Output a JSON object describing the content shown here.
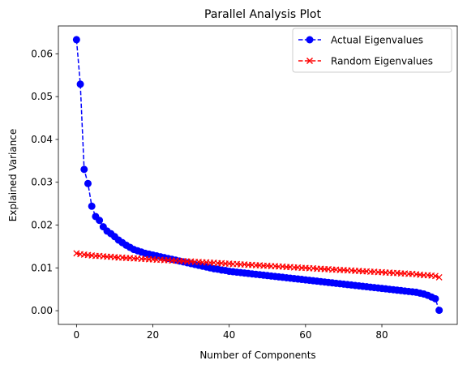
{
  "chart_data": {
    "type": "line",
    "title": "Parallel Analysis Plot",
    "xlabel": "Number of Components",
    "ylabel": "Explained Variance",
    "xlim": [
      -4.75,
      99.75
    ],
    "ylim": [
      -0.0032,
      0.0665
    ],
    "xticks": [
      0,
      20,
      40,
      60,
      80
    ],
    "yticks": [
      0.0,
      0.01,
      0.02,
      0.03,
      0.04,
      0.05,
      0.06
    ],
    "ytick_labels": [
      "0.00",
      "0.01",
      "0.02",
      "0.03",
      "0.04",
      "0.05",
      "0.06"
    ],
    "legend_position": "top-right",
    "series": [
      {
        "name": "Actual Eigenvalues",
        "color": "#0000ff",
        "marker": "circle",
        "linestyle": "dashed",
        "values": [
          0.0633,
          0.0529,
          0.033,
          0.0297,
          0.0244,
          0.022,
          0.0211,
          0.0196,
          0.0186,
          0.018,
          0.0173,
          0.0165,
          0.0159,
          0.0153,
          0.0148,
          0.0143,
          0.014,
          0.0137,
          0.0134,
          0.0132,
          0.013,
          0.0128,
          0.0126,
          0.0124,
          0.0122,
          0.012,
          0.0118,
          0.0116,
          0.0114,
          0.0112,
          0.011,
          0.0108,
          0.0106,
          0.0104,
          0.0102,
          0.01,
          0.0098,
          0.0097,
          0.0095,
          0.0094,
          0.0092,
          0.0091,
          0.009,
          0.0089,
          0.0088,
          0.0087,
          0.0086,
          0.0085,
          0.0084,
          0.0083,
          0.0082,
          0.0081,
          0.008,
          0.0079,
          0.0078,
          0.0077,
          0.0076,
          0.0075,
          0.0074,
          0.0073,
          0.0072,
          0.0071,
          0.007,
          0.0069,
          0.0068,
          0.0067,
          0.0066,
          0.0065,
          0.0064,
          0.0063,
          0.0062,
          0.0061,
          0.006,
          0.0059,
          0.0058,
          0.0057,
          0.0056,
          0.0055,
          0.0054,
          0.0053,
          0.0052,
          0.0051,
          0.005,
          0.0049,
          0.0048,
          0.0047,
          0.0046,
          0.0045,
          0.0044,
          0.0043,
          0.0041,
          0.0039,
          0.0036,
          0.0032,
          0.0028,
          0.0001
        ]
      },
      {
        "name": "Random Eigenvalues",
        "color": "#ff0000",
        "marker": "x",
        "linestyle": "dashed",
        "values": [
          0.0134,
          0.0132,
          0.0131,
          0.013,
          0.0129,
          0.0128,
          0.0128,
          0.0127,
          0.0126,
          0.0126,
          0.0125,
          0.0124,
          0.0124,
          0.0123,
          0.0123,
          0.0122,
          0.0122,
          0.0121,
          0.0121,
          0.012,
          0.012,
          0.0119,
          0.0119,
          0.0118,
          0.0118,
          0.0117,
          0.0117,
          0.0116,
          0.0116,
          0.0115,
          0.0115,
          0.0114,
          0.0114,
          0.0113,
          0.0113,
          0.0112,
          0.0112,
          0.0111,
          0.0111,
          0.011,
          0.011,
          0.0109,
          0.0109,
          0.0108,
          0.0108,
          0.0107,
          0.0107,
          0.0106,
          0.0106,
          0.0105,
          0.0105,
          0.0104,
          0.0104,
          0.0103,
          0.0103,
          0.0102,
          0.0102,
          0.0101,
          0.0101,
          0.01,
          0.01,
          0.0099,
          0.0099,
          0.0098,
          0.0098,
          0.0097,
          0.0097,
          0.0096,
          0.0096,
          0.0095,
          0.0095,
          0.0094,
          0.0094,
          0.0093,
          0.0093,
          0.0092,
          0.0092,
          0.0091,
          0.0091,
          0.009,
          0.009,
          0.0089,
          0.0089,
          0.0088,
          0.0088,
          0.0087,
          0.0087,
          0.0086,
          0.0086,
          0.0085,
          0.0084,
          0.0083,
          0.0083,
          0.0082,
          0.0081,
          0.0078
        ]
      }
    ]
  }
}
